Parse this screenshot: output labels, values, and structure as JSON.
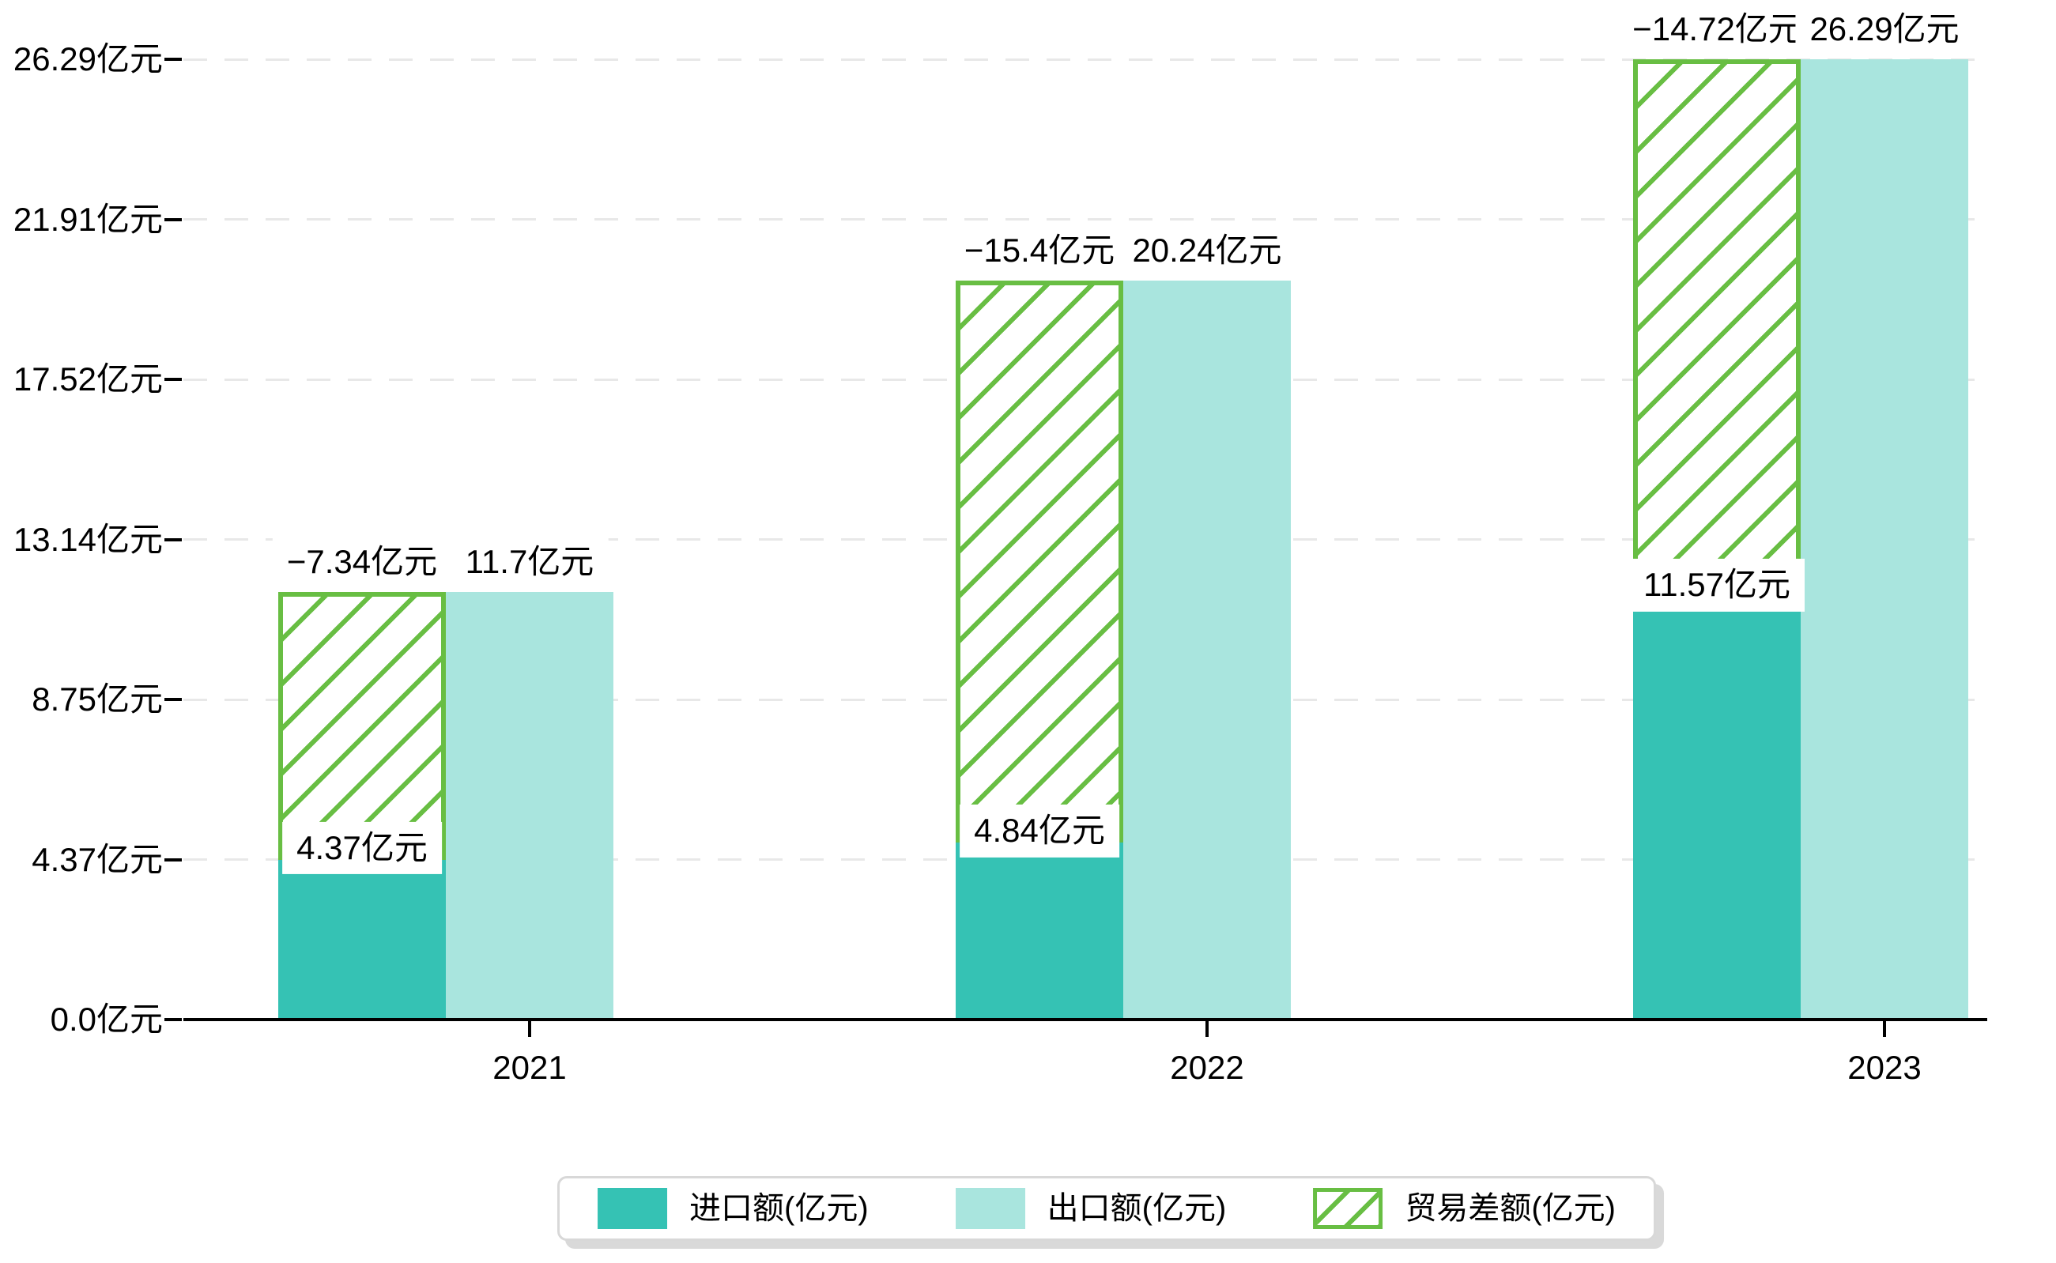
{
  "chart_data": {
    "type": "bar",
    "title": "",
    "categories": [
      "2021",
      "2022",
      "2023"
    ],
    "series": [
      {
        "name": "进口额(亿元)",
        "style": "solid",
        "color": "#35c2b4",
        "values": [
          4.37,
          4.84,
          11.57
        ],
        "labels": [
          "4.37亿元",
          "4.84亿元",
          "11.57亿元"
        ]
      },
      {
        "name": "出口额(亿元)",
        "style": "solid",
        "color": "#a9e5de",
        "values": [
          11.7,
          20.24,
          26.29
        ],
        "labels": [
          "11.7亿元",
          "20.24亿元",
          "26.29亿元"
        ]
      },
      {
        "name": "贸易差额(亿元)",
        "style": "hatched",
        "color": "#68be43",
        "values": [
          -7.34,
          -15.4,
          -14.72
        ],
        "labels": [
          "−7.34亿元",
          "−15.4亿元",
          "−14.72亿元"
        ],
        "render_note": "hatched segment stacked on top of import bar up to export level"
      }
    ],
    "y_ticks": [
      "0.0亿元",
      "4.37亿元",
      "8.75亿元",
      "13.14亿元",
      "17.52亿元",
      "21.91亿元",
      "26.29亿元"
    ],
    "y_tick_values": [
      0,
      4.37,
      8.75,
      13.14,
      17.52,
      21.91,
      26.29
    ],
    "ylim": [
      0,
      26.29
    ],
    "unit": "亿元",
    "grid": "horizontal-dashed",
    "legend_position": "bottom-center"
  }
}
